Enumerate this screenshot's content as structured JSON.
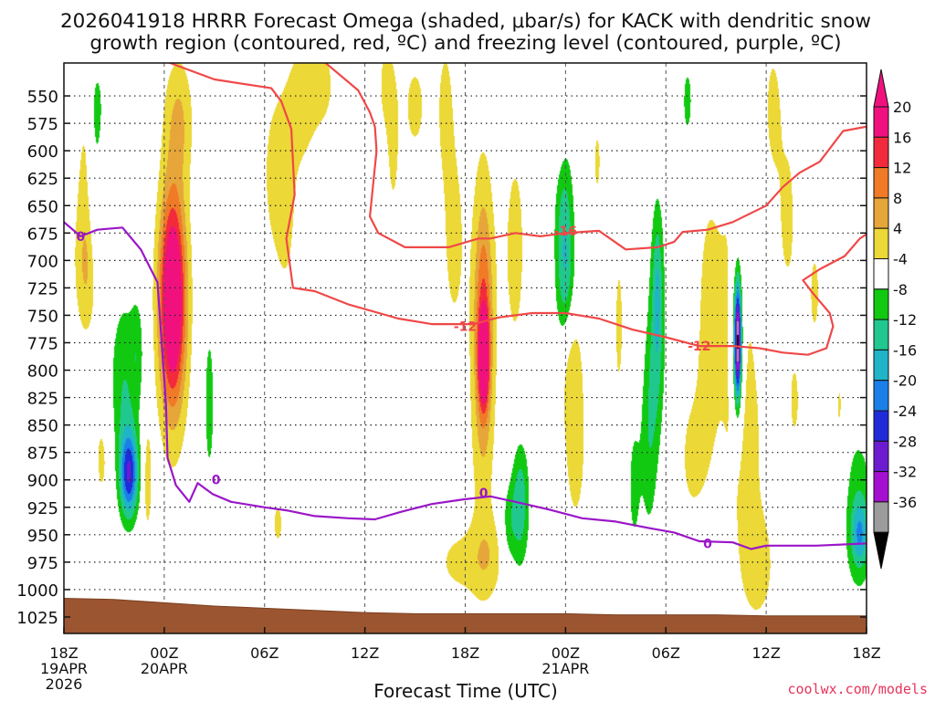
{
  "chart_data": {
    "type": "heatmap",
    "title_line1": "2026041918 HRRR Forecast Omega (shaded, μbar/s) for KACK with dendritic snow",
    "title_line2": "growth region (contoured, red, ºC) and freezing level (contoured, purple, ºC)",
    "xlabel": "Forecast Time (UTC)",
    "credit": "coolwx.com/models",
    "x_range_hours": [
      0,
      48
    ],
    "y_range_mb": [
      1040,
      520
    ],
    "y_ticks": [
      550,
      575,
      600,
      625,
      650,
      675,
      700,
      725,
      750,
      775,
      800,
      825,
      850,
      875,
      900,
      925,
      950,
      975,
      1000,
      1025
    ],
    "y_tick_labels": [
      "550",
      "575",
      "600",
      "625",
      "650",
      "675",
      "700",
      "725",
      "750",
      "775",
      "800",
      "825",
      "850",
      "875",
      "900",
      "925",
      "950",
      "975",
      "1000",
      "1025"
    ],
    "x_ticks": [
      {
        "hour": 0,
        "label": "18Z",
        "date": "19APR",
        "year": "2026"
      },
      {
        "hour": 6,
        "label": "00Z",
        "date": "20APR",
        "year": ""
      },
      {
        "hour": 12,
        "label": "06Z",
        "date": "",
        "year": ""
      },
      {
        "hour": 18,
        "label": "12Z",
        "date": "",
        "year": ""
      },
      {
        "hour": 24,
        "label": "18Z",
        "date": "",
        "year": ""
      },
      {
        "hour": 30,
        "label": "00Z",
        "date": "21APR",
        "year": ""
      },
      {
        "hour": 36,
        "label": "06Z",
        "date": "",
        "year": ""
      },
      {
        "hour": 42,
        "label": "12Z",
        "date": "",
        "year": ""
      },
      {
        "hour": 48,
        "label": "18Z",
        "date": "",
        "year": ""
      }
    ],
    "colorbar": {
      "labels": [
        "20",
        "16",
        "12",
        "8",
        "4",
        "-4",
        "-8",
        "-12",
        "-16",
        "-20",
        "-24",
        "-28",
        "-32",
        "-36"
      ],
      "bins": [
        {
          "lo": 20,
          "hi": 24,
          "color": "#f0117f"
        },
        {
          "lo": 16,
          "hi": 20,
          "color": "#f22a3c"
        },
        {
          "lo": 12,
          "hi": 16,
          "color": "#f07a26"
        },
        {
          "lo": 8,
          "hi": 12,
          "color": "#e6a63a"
        },
        {
          "lo": 4,
          "hi": 8,
          "color": "#ecd836"
        },
        {
          "lo": -4,
          "hi": 4,
          "color": "#ffffff"
        },
        {
          "lo": -8,
          "hi": -4,
          "color": "#11c911"
        },
        {
          "lo": -12,
          "hi": -8,
          "color": "#20c88e"
        },
        {
          "lo": -16,
          "hi": -12,
          "color": "#1fb4c8"
        },
        {
          "lo": -20,
          "hi": -16,
          "color": "#1b7fe9"
        },
        {
          "lo": -24,
          "hi": -20,
          "color": "#1f2bd8"
        },
        {
          "lo": -28,
          "hi": -24,
          "color": "#6d1bd0"
        },
        {
          "lo": -32,
          "hi": -28,
          "color": "#a50fcf"
        },
        {
          "lo": -36,
          "hi": -32,
          "color": "#9c9c9c"
        }
      ]
    },
    "omega_blobs": [
      {
        "t": 1.4,
        "p": 705,
        "dt": 0.8,
        "dp": 70,
        "w": 9
      },
      {
        "t": 1.6,
        "p": 600,
        "dt": 1.0,
        "dp": 80,
        "w": 5
      },
      {
        "t": 2.3,
        "p": 880,
        "dt": 0.6,
        "dp": 60,
        "w": 5
      },
      {
        "t": 1.9,
        "p": 640,
        "dt": 0.5,
        "dp": 90,
        "w": -8
      },
      {
        "t": 2.0,
        "p": 560,
        "dt": 0.4,
        "dp": 40,
        "w": -6
      },
      {
        "t": 3.9,
        "p": 895,
        "dt": 0.55,
        "dp": 40,
        "w": -22
      },
      {
        "t": 3.6,
        "p": 820,
        "dt": 0.9,
        "dp": 90,
        "w": -8
      },
      {
        "t": 4.4,
        "p": 780,
        "dt": 0.4,
        "dp": 50,
        "w": -5
      },
      {
        "t": 5.0,
        "p": 900,
        "dt": 0.3,
        "dp": 60,
        "w": 6
      },
      {
        "t": 6.5,
        "p": 735,
        "dt": 0.75,
        "dp": 90,
        "w": 23
      },
      {
        "t": 6.5,
        "p": 740,
        "dt": 1.1,
        "dp": 150,
        "w": 9
      },
      {
        "t": 6.9,
        "p": 570,
        "dt": 0.9,
        "dp": 60,
        "w": 7
      },
      {
        "t": 8.7,
        "p": 830,
        "dt": 0.3,
        "dp": 70,
        "w": -7
      },
      {
        "t": 12.5,
        "p": 620,
        "dt": 0.8,
        "dp": 80,
        "w": 4.5
      },
      {
        "t": 13.3,
        "p": 640,
        "dt": 0.8,
        "dp": 120,
        "w": 5
      },
      {
        "t": 14.2,
        "p": 560,
        "dt": 0.8,
        "dp": 60,
        "w": 5
      },
      {
        "t": 15.4,
        "p": 540,
        "dt": 1.2,
        "dp": 60,
        "w": 5
      },
      {
        "t": 12.8,
        "p": 940,
        "dt": 0.6,
        "dp": 40,
        "w": 4.5
      },
      {
        "t": 19.3,
        "p": 540,
        "dt": 0.7,
        "dp": 60,
        "w": 5
      },
      {
        "t": 19.7,
        "p": 610,
        "dt": 0.4,
        "dp": 60,
        "w": 4.5
      },
      {
        "t": 21.0,
        "p": 560,
        "dt": 0.9,
        "dp": 60,
        "w": 5
      },
      {
        "t": 22.8,
        "p": 560,
        "dt": 0.6,
        "dp": 80,
        "w": 5
      },
      {
        "t": 23.3,
        "p": 680,
        "dt": 0.7,
        "dp": 100,
        "w": 5.5
      },
      {
        "t": 23.6,
        "p": 975,
        "dt": 1.6,
        "dp": 35,
        "w": 5
      },
      {
        "t": 25.1,
        "p": 760,
        "dt": 0.55,
        "dp": 110,
        "w": 13
      },
      {
        "t": 25.1,
        "p": 790,
        "dt": 0.3,
        "dp": 40,
        "w": 22
      },
      {
        "t": 25.0,
        "p": 790,
        "dt": 1.0,
        "dp": 250,
        "w": 5
      },
      {
        "t": 25.5,
        "p": 970,
        "dt": 1.0,
        "dp": 40,
        "w": 4.5
      },
      {
        "t": 27.0,
        "p": 690,
        "dt": 0.9,
        "dp": 140,
        "w": 5
      },
      {
        "t": 26.6,
        "p": 940,
        "dt": 0.5,
        "dp": 40,
        "w": -6
      },
      {
        "t": 27.3,
        "p": 920,
        "dt": 0.55,
        "dp": 60,
        "w": -11
      },
      {
        "t": 29.9,
        "p": 650,
        "dt": 0.6,
        "dp": 70,
        "w": -7
      },
      {
        "t": 30.0,
        "p": 720,
        "dt": 0.6,
        "dp": 70,
        "w": -10
      },
      {
        "t": 30.3,
        "p": 790,
        "dt": 0.6,
        "dp": 60,
        "w": 5
      },
      {
        "t": 30.6,
        "p": 870,
        "dt": 1.0,
        "dp": 120,
        "w": 5
      },
      {
        "t": 29.5,
        "p": 560,
        "dt": 0.6,
        "dp": 60,
        "w": 4.5
      },
      {
        "t": 31.9,
        "p": 610,
        "dt": 0.4,
        "dp": 60,
        "w": 4.5
      },
      {
        "t": 33.2,
        "p": 760,
        "dt": 0.5,
        "dp": 130,
        "w": 4.5
      },
      {
        "t": 34.1,
        "p": 905,
        "dt": 0.5,
        "dp": 80,
        "w": -5
      },
      {
        "t": 35.0,
        "p": 855,
        "dt": 0.5,
        "dp": 100,
        "w": -7
      },
      {
        "t": 35.5,
        "p": 760,
        "dt": 0.5,
        "dp": 110,
        "w": -9
      },
      {
        "t": 35.5,
        "p": 720,
        "dt": 0.3,
        "dp": 70,
        "w": -5
      },
      {
        "t": 37.3,
        "p": 555,
        "dt": 0.45,
        "dp": 50,
        "w": -5
      },
      {
        "t": 38.5,
        "p": 760,
        "dt": 0.8,
        "dp": 150,
        "w": 5
      },
      {
        "t": 37.5,
        "p": 880,
        "dt": 1.0,
        "dp": 80,
        "w": 4.5
      },
      {
        "t": 40.3,
        "p": 770,
        "dt": 0.4,
        "dp": 90,
        "w": -13
      },
      {
        "t": 40.3,
        "p": 775,
        "dt": 0.2,
        "dp": 50,
        "w": -30
      },
      {
        "t": 40.0,
        "p": 740,
        "dt": 1.2,
        "dp": 200,
        "w": 4.5
      },
      {
        "t": 41.0,
        "p": 880,
        "dt": 1.2,
        "dp": 140,
        "w": 4.5
      },
      {
        "t": 41.6,
        "p": 980,
        "dt": 1.0,
        "dp": 50,
        "w": 5
      },
      {
        "t": 42.4,
        "p": 560,
        "dt": 0.6,
        "dp": 70,
        "w": 5
      },
      {
        "t": 43.3,
        "p": 660,
        "dt": 0.8,
        "dp": 100,
        "w": 5
      },
      {
        "t": 43.7,
        "p": 830,
        "dt": 0.5,
        "dp": 60,
        "w": 4.5
      },
      {
        "t": 44.1,
        "p": 640,
        "dt": 0.35,
        "dp": 80,
        "w": -5
      },
      {
        "t": 44.9,
        "p": 730,
        "dt": 0.6,
        "dp": 80,
        "w": 4.5
      },
      {
        "t": 46.4,
        "p": 840,
        "dt": 0.5,
        "dp": 80,
        "w": 4.5
      },
      {
        "t": 47.5,
        "p": 930,
        "dt": 1.0,
        "dp": 80,
        "w": -7
      },
      {
        "t": 47.6,
        "p": 950,
        "dt": 0.5,
        "dp": 30,
        "w": -11
      }
    ],
    "freezing_level": {
      "label": "0",
      "points": [
        [
          0,
          665
        ],
        [
          1.0,
          678
        ],
        [
          2.0,
          672
        ],
        [
          3.5,
          670
        ],
        [
          4.6,
          690
        ],
        [
          5.6,
          720
        ],
        [
          6.1,
          830
        ],
        [
          6.2,
          880
        ],
        [
          6.7,
          905
        ],
        [
          7.5,
          920
        ],
        [
          8.0,
          903
        ],
        [
          8.9,
          913
        ],
        [
          10.0,
          920
        ],
        [
          12.0,
          925
        ],
        [
          13.4,
          928
        ],
        [
          15.0,
          933
        ],
        [
          17.0,
          935
        ],
        [
          18.6,
          936
        ],
        [
          20.2,
          929
        ],
        [
          22.0,
          922
        ],
        [
          23.8,
          918
        ],
        [
          25.5,
          915
        ],
        [
          27.0,
          920
        ],
        [
          29.0,
          927
        ],
        [
          31.0,
          935
        ],
        [
          33.0,
          938
        ],
        [
          35.0,
          944
        ],
        [
          36.5,
          948
        ],
        [
          38.0,
          956
        ],
        [
          40.0,
          957
        ],
        [
          41.1,
          963
        ],
        [
          42.0,
          960
        ],
        [
          45.0,
          960
        ],
        [
          48.0,
          958
        ]
      ],
      "labels_at": [
        [
          1.0,
          678
        ],
        [
          9.1,
          900
        ],
        [
          25.1,
          912
        ],
        [
          38.5,
          958
        ]
      ]
    },
    "dgz_minus12": {
      "label": "-12",
      "points": [
        [
          6.0,
          518
        ],
        [
          9.0,
          535
        ],
        [
          12.4,
          543
        ],
        [
          13.0,
          555
        ],
        [
          13.6,
          580
        ],
        [
          13.8,
          640
        ],
        [
          13.3,
          680
        ],
        [
          13.7,
          725
        ],
        [
          15.0,
          728
        ],
        [
          17.0,
          740
        ],
        [
          20.0,
          753
        ],
        [
          22.0,
          758
        ],
        [
          24.5,
          758
        ],
        [
          26.0,
          752
        ],
        [
          28.0,
          748
        ],
        [
          30.0,
          748
        ],
        [
          32.0,
          753
        ],
        [
          34.0,
          763
        ],
        [
          36.0,
          770
        ],
        [
          38.0,
          778
        ],
        [
          40.0,
          778
        ],
        [
          41.6,
          780
        ],
        [
          43.0,
          784
        ],
        [
          44.5,
          786
        ],
        [
          45.6,
          780
        ],
        [
          46.0,
          760
        ],
        [
          45.8,
          748
        ],
        [
          44.8,
          730
        ],
        [
          44.2,
          718
        ],
        [
          45.2,
          708
        ],
        [
          46.7,
          696
        ],
        [
          47.6,
          680
        ],
        [
          48.0,
          676
        ]
      ],
      "labels_at": [
        [
          24.0,
          760
        ],
        [
          38.0,
          778
        ]
      ]
    },
    "dgz_minus16": {
      "label": "-16",
      "points": [
        [
          15.5,
          518
        ],
        [
          17.6,
          545
        ],
        [
          18.3,
          565
        ],
        [
          18.6,
          578
        ],
        [
          18.7,
          600
        ],
        [
          18.3,
          660
        ],
        [
          18.8,
          675
        ],
        [
          20.4,
          688
        ],
        [
          23.0,
          688
        ],
        [
          24.8,
          680
        ],
        [
          25.5,
          680
        ],
        [
          27.0,
          675
        ],
        [
          28.5,
          678
        ],
        [
          30.0,
          675
        ],
        [
          32.0,
          673
        ],
        [
          33.6,
          690
        ],
        [
          35.5,
          688
        ],
        [
          36.5,
          683
        ],
        [
          37.0,
          674
        ],
        [
          38.5,
          672
        ],
        [
          40.0,
          665
        ],
        [
          42.0,
          650
        ],
        [
          43.0,
          633
        ],
        [
          44.0,
          620
        ],
        [
          45.2,
          610
        ],
        [
          45.7,
          600
        ],
        [
          46.6,
          582
        ],
        [
          48.0,
          578
        ]
      ],
      "labels_at": [
        [
          30.0,
          673
        ]
      ]
    },
    "terrain_surface": [
      [
        0,
        1008
      ],
      [
        3,
        1009
      ],
      [
        6,
        1012
      ],
      [
        9,
        1015
      ],
      [
        12,
        1017
      ],
      [
        15,
        1019
      ],
      [
        18,
        1021
      ],
      [
        21,
        1022
      ],
      [
        24,
        1022
      ],
      [
        27,
        1022
      ],
      [
        30,
        1022
      ],
      [
        33,
        1023
      ],
      [
        36,
        1023
      ],
      [
        39,
        1023
      ],
      [
        42,
        1024
      ],
      [
        45,
        1024
      ],
      [
        48,
        1024
      ]
    ]
  }
}
